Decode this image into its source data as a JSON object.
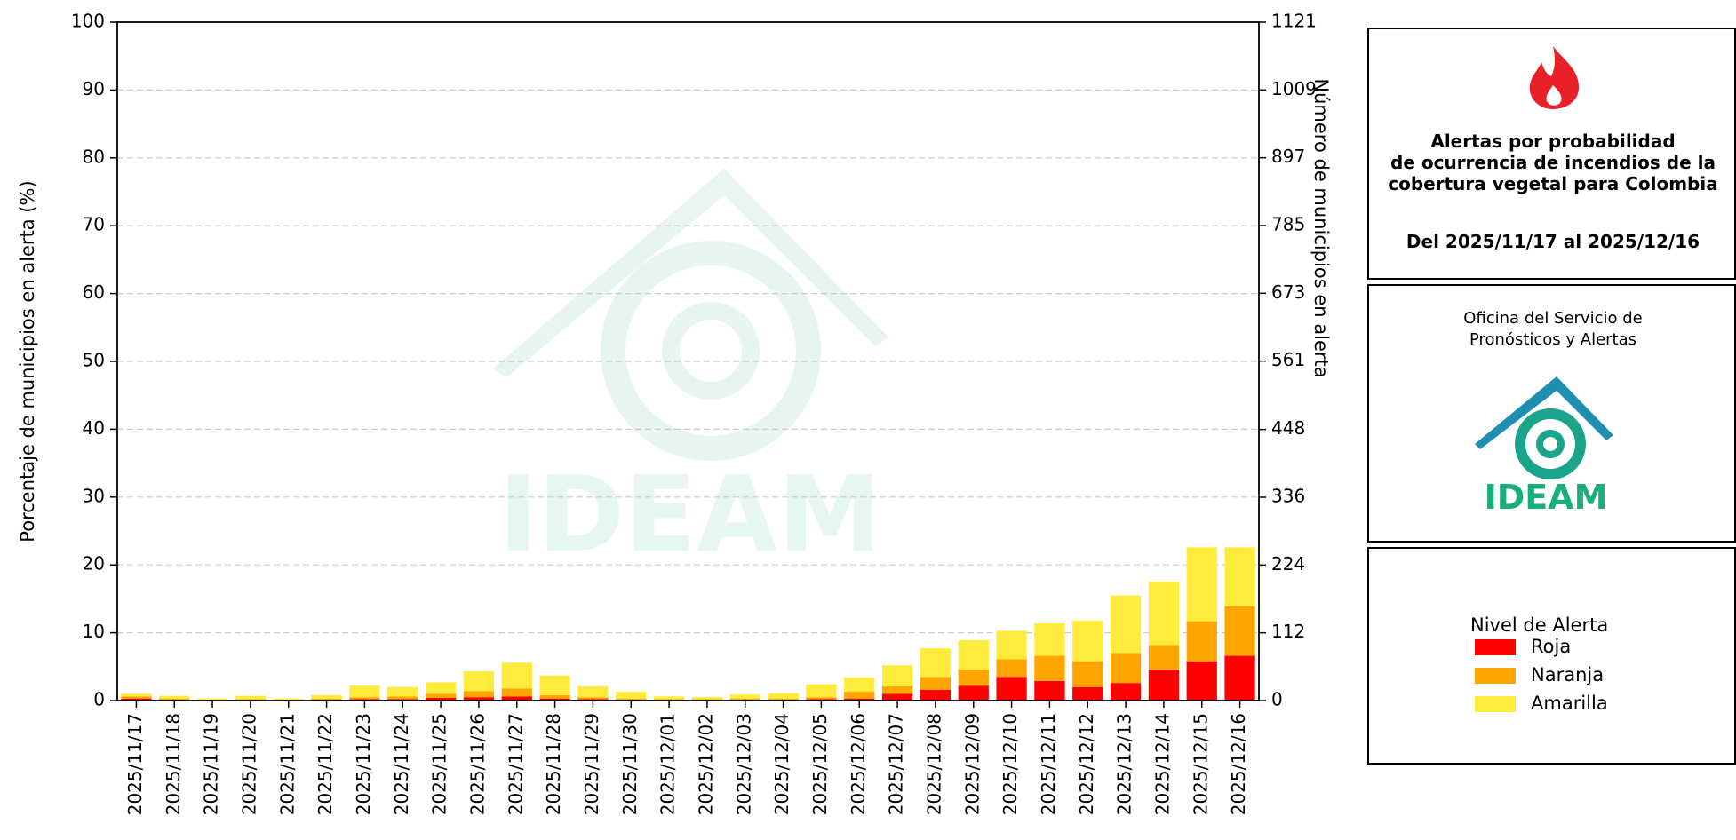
{
  "chart_data": {
    "type": "bar",
    "stacked": true,
    "ylabel": "Porcentaje de municipios en alerta (%)",
    "y2label": "Número de municipios en alerta",
    "categories": [
      "2025/11/17",
      "2025/11/18",
      "2025/11/19",
      "2025/11/20",
      "2025/11/21",
      "2025/11/22",
      "2025/11/23",
      "2025/11/24",
      "2025/11/25",
      "2025/11/26",
      "2025/11/27",
      "2025/11/28",
      "2025/11/29",
      "2025/11/30",
      "2025/12/01",
      "2025/12/02",
      "2025/12/03",
      "2025/12/04",
      "2025/12/05",
      "2025/12/06",
      "2025/12/07",
      "2025/12/08",
      "2025/12/09",
      "2025/12/10",
      "2025/12/11",
      "2025/12/12",
      "2025/12/13",
      "2025/12/14",
      "2025/12/15",
      "2025/12/16"
    ],
    "series": [
      {
        "name": "Roja",
        "color": "#ff0000",
        "values": [
          0.3,
          0.1,
          0,
          0.1,
          0,
          0.1,
          0.2,
          0.2,
          0.4,
          0.5,
          0.6,
          0.3,
          0.2,
          0.1,
          0.1,
          0.1,
          0.1,
          0.1,
          0.2,
          0.3,
          1.0,
          1.6,
          2.2,
          3.5,
          2.9,
          2.0,
          2.6,
          4.6,
          5.8,
          6.6
        ]
      },
      {
        "name": "Naranja",
        "color": "#ffa500",
        "values": [
          0.3,
          0.2,
          0.1,
          0.1,
          0,
          0.2,
          0.3,
          0.4,
          0.6,
          0.9,
          1.2,
          0.5,
          0.3,
          0.2,
          0.1,
          0.1,
          0.2,
          0.2,
          0.3,
          1.0,
          1.1,
          1.9,
          2.4,
          2.6,
          3.7,
          3.8,
          4.4,
          3.6,
          5.9,
          7.3
        ]
      },
      {
        "name": "Amarilla",
        "color": "#ffeb3b",
        "values": [
          0.4,
          0.4,
          0.2,
          0.5,
          0.3,
          0.5,
          1.7,
          1.4,
          1.7,
          2.9,
          3.8,
          2.9,
          1.6,
          1.0,
          0.4,
          0.3,
          0.6,
          0.8,
          1.9,
          2.1,
          3.1,
          4.2,
          4.3,
          4.2,
          4.8,
          6.0,
          8.5,
          9.3,
          10.9,
          8.7
        ]
      }
    ],
    "ylim": [
      0,
      100
    ],
    "yticks": [
      0,
      10,
      20,
      30,
      40,
      50,
      60,
      70,
      80,
      90,
      100
    ],
    "y2lim": [
      0,
      1121
    ],
    "y2ticks": [
      0,
      112,
      224,
      336,
      448,
      561,
      673,
      785,
      897,
      1009,
      1121
    ],
    "grid": true,
    "legend_title": "Nivel de Alerta"
  },
  "panel": {
    "title": [
      "Alertas por probabilidad",
      "de ocurrencia de incendios de la",
      "cobertura vegetal para Colombia"
    ],
    "date": "Del 2025/11/17 al 2025/12/16",
    "office": [
      "Oficina del Servicio de",
      "Pronósticos y Alertas"
    ],
    "logo_text": "IDEAM"
  }
}
